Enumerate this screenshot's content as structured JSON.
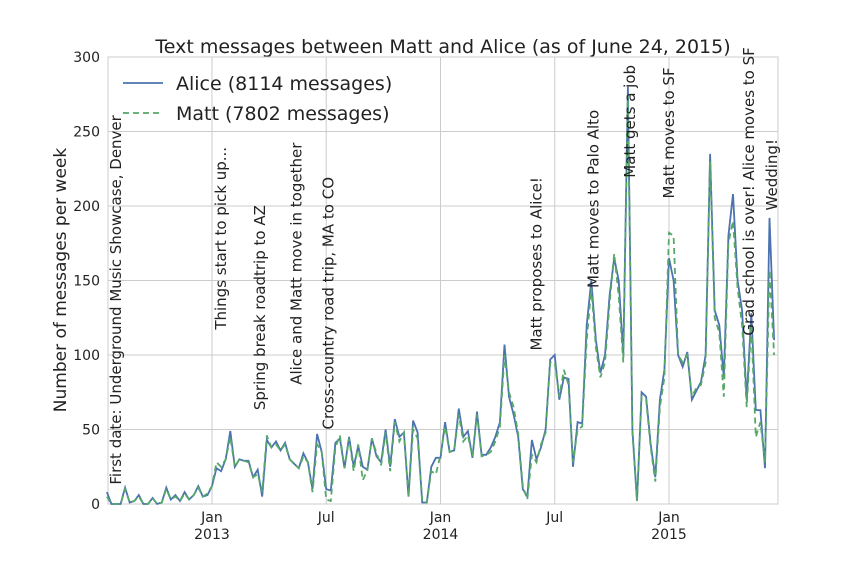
{
  "chart_data": {
    "type": "line",
    "title": "Text messages between Matt and Alice (as of June 24, 2015)",
    "y_label": "Number of messages per week",
    "xlim": [
      2012.545,
      2015.477
    ],
    "ylim": [
      0,
      300
    ],
    "xticks": [
      {
        "value": 2013,
        "label": "Jan\n2013"
      },
      {
        "value": 2013.5,
        "label": "Jul"
      },
      {
        "value": 2014,
        "label": "Jan\n2014"
      },
      {
        "value": 2014.5,
        "label": "Jul"
      },
      {
        "value": 2015,
        "label": "Jan\n2015"
      }
    ],
    "yticks": [
      0,
      50,
      100,
      150,
      200,
      250,
      300
    ],
    "grid": true,
    "legend": "upper left",
    "x": [
      2012.54,
      2012.56,
      2012.58,
      2012.6,
      2012.62,
      2012.64,
      2012.66,
      2012.68,
      2012.7,
      2012.72,
      2012.74,
      2012.76,
      2012.78,
      2012.8,
      2012.82,
      2012.84,
      2012.86,
      2012.88,
      2012.9,
      2012.92,
      2012.94,
      2012.96,
      2012.98,
      2013.0,
      2013.02,
      2013.04,
      2013.06,
      2013.08,
      2013.1,
      2013.12,
      2013.14,
      2013.16,
      2013.18,
      2013.2,
      2013.22,
      2013.24,
      2013.26,
      2013.28,
      2013.3,
      2013.32,
      2013.34,
      2013.36,
      2013.38,
      2013.4,
      2013.42,
      2013.44,
      2013.46,
      2013.48,
      2013.5,
      2013.52,
      2013.54,
      2013.56,
      2013.58,
      2013.6,
      2013.62,
      2013.64,
      2013.66,
      2013.68,
      2013.7,
      2013.72,
      2013.74,
      2013.76,
      2013.78,
      2013.8,
      2013.82,
      2013.84,
      2013.86,
      2013.88,
      2013.9,
      2013.92,
      2013.94,
      2013.96,
      2013.98,
      2014.0,
      2014.02,
      2014.04,
      2014.06,
      2014.08,
      2014.1,
      2014.12,
      2014.14,
      2014.16,
      2014.18,
      2014.2,
      2014.22,
      2014.24,
      2014.26,
      2014.28,
      2014.3,
      2014.32,
      2014.34,
      2014.36,
      2014.38,
      2014.4,
      2014.42,
      2014.44,
      2014.46,
      2014.48,
      2014.5,
      2014.52,
      2014.54,
      2014.56,
      2014.58,
      2014.6,
      2014.62,
      2014.64,
      2014.66,
      2014.68,
      2014.7,
      2014.72,
      2014.74,
      2014.76,
      2014.78,
      2014.8,
      2014.82,
      2014.84,
      2014.86,
      2014.88,
      2014.9,
      2014.92,
      2014.94,
      2014.96,
      2014.98,
      2015.0,
      2015.02,
      2015.04,
      2015.06,
      2015.08,
      2015.1,
      2015.12,
      2015.14,
      2015.16,
      2015.18,
      2015.2,
      2015.22,
      2015.24,
      2015.26,
      2015.28,
      2015.3,
      2015.32,
      2015.34,
      2015.36,
      2015.38,
      2015.4,
      2015.42,
      2015.44,
      2015.46
    ],
    "series": [
      {
        "name": "Alice (8114 messages)",
        "color": "#4c72b0",
        "dash": false,
        "values": [
          8,
          0,
          0,
          0,
          11,
          1,
          2,
          6,
          0,
          0,
          4,
          0,
          1,
          11,
          3,
          6,
          2,
          8,
          3,
          6,
          12,
          5,
          6,
          12,
          24,
          22,
          30,
          49,
          25,
          30,
          29,
          29,
          18,
          23,
          5,
          43,
          38,
          42,
          36,
          41,
          30,
          27,
          24,
          34,
          28,
          10,
          47,
          35,
          10,
          9,
          41,
          44,
          24,
          45,
          25,
          39,
          25,
          23,
          44,
          32,
          28,
          50,
          25,
          57,
          45,
          48,
          5,
          56,
          48,
          1,
          1,
          25,
          31,
          31,
          55,
          35,
          36,
          64,
          45,
          49,
          31,
          62,
          33,
          33,
          38,
          45,
          55,
          107,
          72,
          60,
          45,
          10,
          5,
          43,
          30,
          38,
          50,
          97,
          100,
          70,
          85,
          84,
          25,
          55,
          54,
          120,
          150,
          110,
          88,
          100,
          140,
          165,
          150,
          100,
          280,
          50,
          2,
          75,
          72,
          40,
          18,
          70,
          90,
          165,
          150,
          100,
          92,
          102,
          70,
          76,
          82,
          100,
          235,
          130,
          120,
          85,
          180,
          208,
          150,
          130,
          70,
          128,
          63,
          63,
          24,
          192,
          110
        ]
      },
      {
        "name": "Matt (7802 messages)",
        "color": "#55a868",
        "dash": true,
        "values": [
          5,
          0,
          0,
          0,
          10,
          1,
          2,
          5,
          0,
          0,
          4,
          0,
          1,
          10,
          3,
          5,
          2,
          7,
          3,
          6,
          11,
          5,
          7,
          12,
          28,
          25,
          30,
          45,
          25,
          30,
          29,
          28,
          18,
          20,
          8,
          46,
          38,
          40,
          36,
          40,
          30,
          27,
          24,
          32,
          28,
          8,
          40,
          35,
          3,
          2,
          38,
          46,
          24,
          44,
          22,
          40,
          16,
          23,
          44,
          34,
          26,
          48,
          22,
          55,
          42,
          48,
          5,
          50,
          44,
          2,
          1,
          22,
          20,
          33,
          52,
          35,
          36,
          60,
          42,
          46,
          32,
          60,
          32,
          33,
          35,
          42,
          52,
          100,
          75,
          65,
          47,
          12,
          3,
          33,
          28,
          40,
          48,
          95,
          95,
          72,
          90,
          80,
          28,
          50,
          52,
          110,
          145,
          105,
          85,
          95,
          135,
          168,
          140,
          95,
          275,
          48,
          2,
          72,
          70,
          38,
          15,
          65,
          85,
          182,
          180,
          100,
          95,
          100,
          72,
          78,
          80,
          95,
          230,
          125,
          115,
          72,
          175,
          190,
          145,
          120,
          65,
          120,
          45,
          55,
          28,
          157,
          100
        ]
      }
    ],
    "annotations": [
      {
        "text": "First date: Underground Music Showcase, Denver",
        "x": 2012.58,
        "y": 13
      },
      {
        "text": "Things start to pick up...",
        "x": 2013.04,
        "y": 117
      },
      {
        "text": "Spring break roadtrip to AZ",
        "x": 2013.21,
        "y": 63
      },
      {
        "text": "Alice and Matt move in together",
        "x": 2013.37,
        "y": 80
      },
      {
        "text": "Cross-country road trip, MA to CO",
        "x": 2013.51,
        "y": 50
      },
      {
        "text": "Matt proposes to Alice!",
        "x": 2014.42,
        "y": 103
      },
      {
        "text": "Matt moves to Palo Alto",
        "x": 2014.67,
        "y": 145
      },
      {
        "text": "Matt gets a job",
        "x": 2014.83,
        "y": 219
      },
      {
        "text": "Matt moves to SF",
        "x": 2015.0,
        "y": 205
      },
      {
        "text": "Grad school is over! Alice moves to SF",
        "x": 2015.35,
        "y": 113
      },
      {
        "text": "Wedding!",
        "x": 2015.45,
        "y": 197
      }
    ]
  }
}
